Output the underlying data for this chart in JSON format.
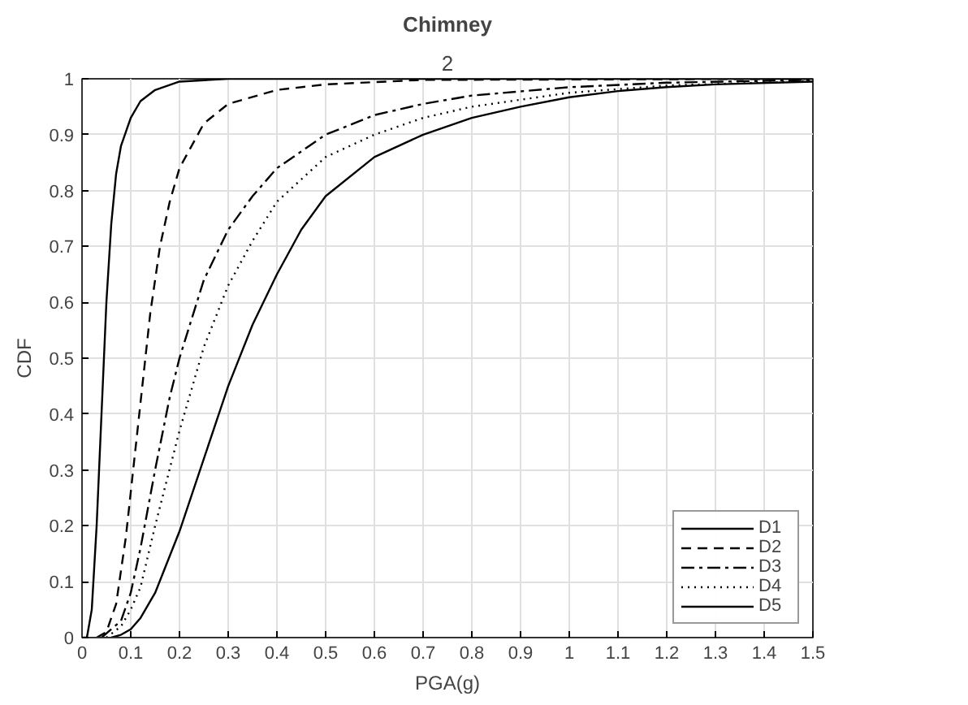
{
  "chart_data": {
    "type": "line",
    "title": "Chimney",
    "subtitle": "2",
    "xlabel": "PGA(g)",
    "ylabel": "CDF",
    "xlim": [
      0,
      1.5
    ],
    "ylim": [
      0,
      1
    ],
    "xticks": [
      0,
      0.1,
      0.2,
      0.3,
      0.4,
      0.5,
      0.6,
      0.7,
      0.8,
      0.9,
      1,
      1.1,
      1.2,
      1.3,
      1.4,
      1.5
    ],
    "yticks": [
      0,
      0.1,
      0.2,
      0.3,
      0.4,
      0.5,
      0.6,
      0.7,
      0.8,
      0.9,
      1
    ],
    "grid": true,
    "legend": "bottom right",
    "marker": "none",
    "series": [
      {
        "name": "D1",
        "color": "#000000",
        "line_style": "solid",
        "x": [
          0,
          0.01,
          0.02,
          0.03,
          0.04,
          0.05,
          0.06,
          0.07,
          0.08,
          0.1,
          0.12,
          0.15,
          0.2,
          0.3,
          1.5
        ],
        "values": [
          0,
          0,
          0.05,
          0.2,
          0.4,
          0.6,
          0.74,
          0.83,
          0.88,
          0.93,
          0.96,
          0.98,
          0.995,
          1,
          1
        ]
      },
      {
        "name": "D2",
        "color": "#000000",
        "line_style": "dashed",
        "x": [
          0.03,
          0.05,
          0.07,
          0.09,
          0.1,
          0.12,
          0.14,
          0.16,
          0.18,
          0.2,
          0.25,
          0.3,
          0.4,
          0.5,
          0.7,
          1.5
        ],
        "values": [
          0,
          0.01,
          0.06,
          0.18,
          0.26,
          0.42,
          0.58,
          0.7,
          0.78,
          0.84,
          0.92,
          0.955,
          0.98,
          0.99,
          0.998,
          1
        ]
      },
      {
        "name": "D3",
        "color": "#000000",
        "line_style": "dashdot",
        "x": [
          0.04,
          0.08,
          0.1,
          0.12,
          0.15,
          0.18,
          0.2,
          0.25,
          0.3,
          0.35,
          0.4,
          0.5,
          0.6,
          0.7,
          0.8,
          1,
          1.2,
          1.5
        ],
        "values": [
          0,
          0.03,
          0.08,
          0.16,
          0.3,
          0.43,
          0.5,
          0.64,
          0.73,
          0.79,
          0.84,
          0.9,
          0.935,
          0.955,
          0.97,
          0.985,
          0.993,
          0.998
        ]
      },
      {
        "name": "D4",
        "color": "#000000",
        "line_style": "dotted",
        "x": [
          0.05,
          0.08,
          0.1,
          0.12,
          0.15,
          0.2,
          0.25,
          0.3,
          0.35,
          0.4,
          0.5,
          0.6,
          0.7,
          0.8,
          1,
          1.2,
          1.5
        ],
        "values": [
          0,
          0.02,
          0.05,
          0.09,
          0.2,
          0.37,
          0.52,
          0.63,
          0.71,
          0.78,
          0.86,
          0.9,
          0.93,
          0.95,
          0.975,
          0.988,
          0.996
        ]
      },
      {
        "name": "D5",
        "color": "#000000",
        "line_style": "solid",
        "x": [
          0.06,
          0.08,
          0.1,
          0.12,
          0.15,
          0.2,
          0.25,
          0.3,
          0.35,
          0.4,
          0.45,
          0.5,
          0.6,
          0.7,
          0.8,
          0.9,
          1,
          1.1,
          1.2,
          1.3,
          1.5
        ],
        "values": [
          0,
          0.005,
          0.015,
          0.035,
          0.08,
          0.19,
          0.32,
          0.45,
          0.56,
          0.65,
          0.73,
          0.79,
          0.86,
          0.9,
          0.93,
          0.95,
          0.967,
          0.978,
          0.985,
          0.99,
          0.995
        ]
      }
    ]
  }
}
